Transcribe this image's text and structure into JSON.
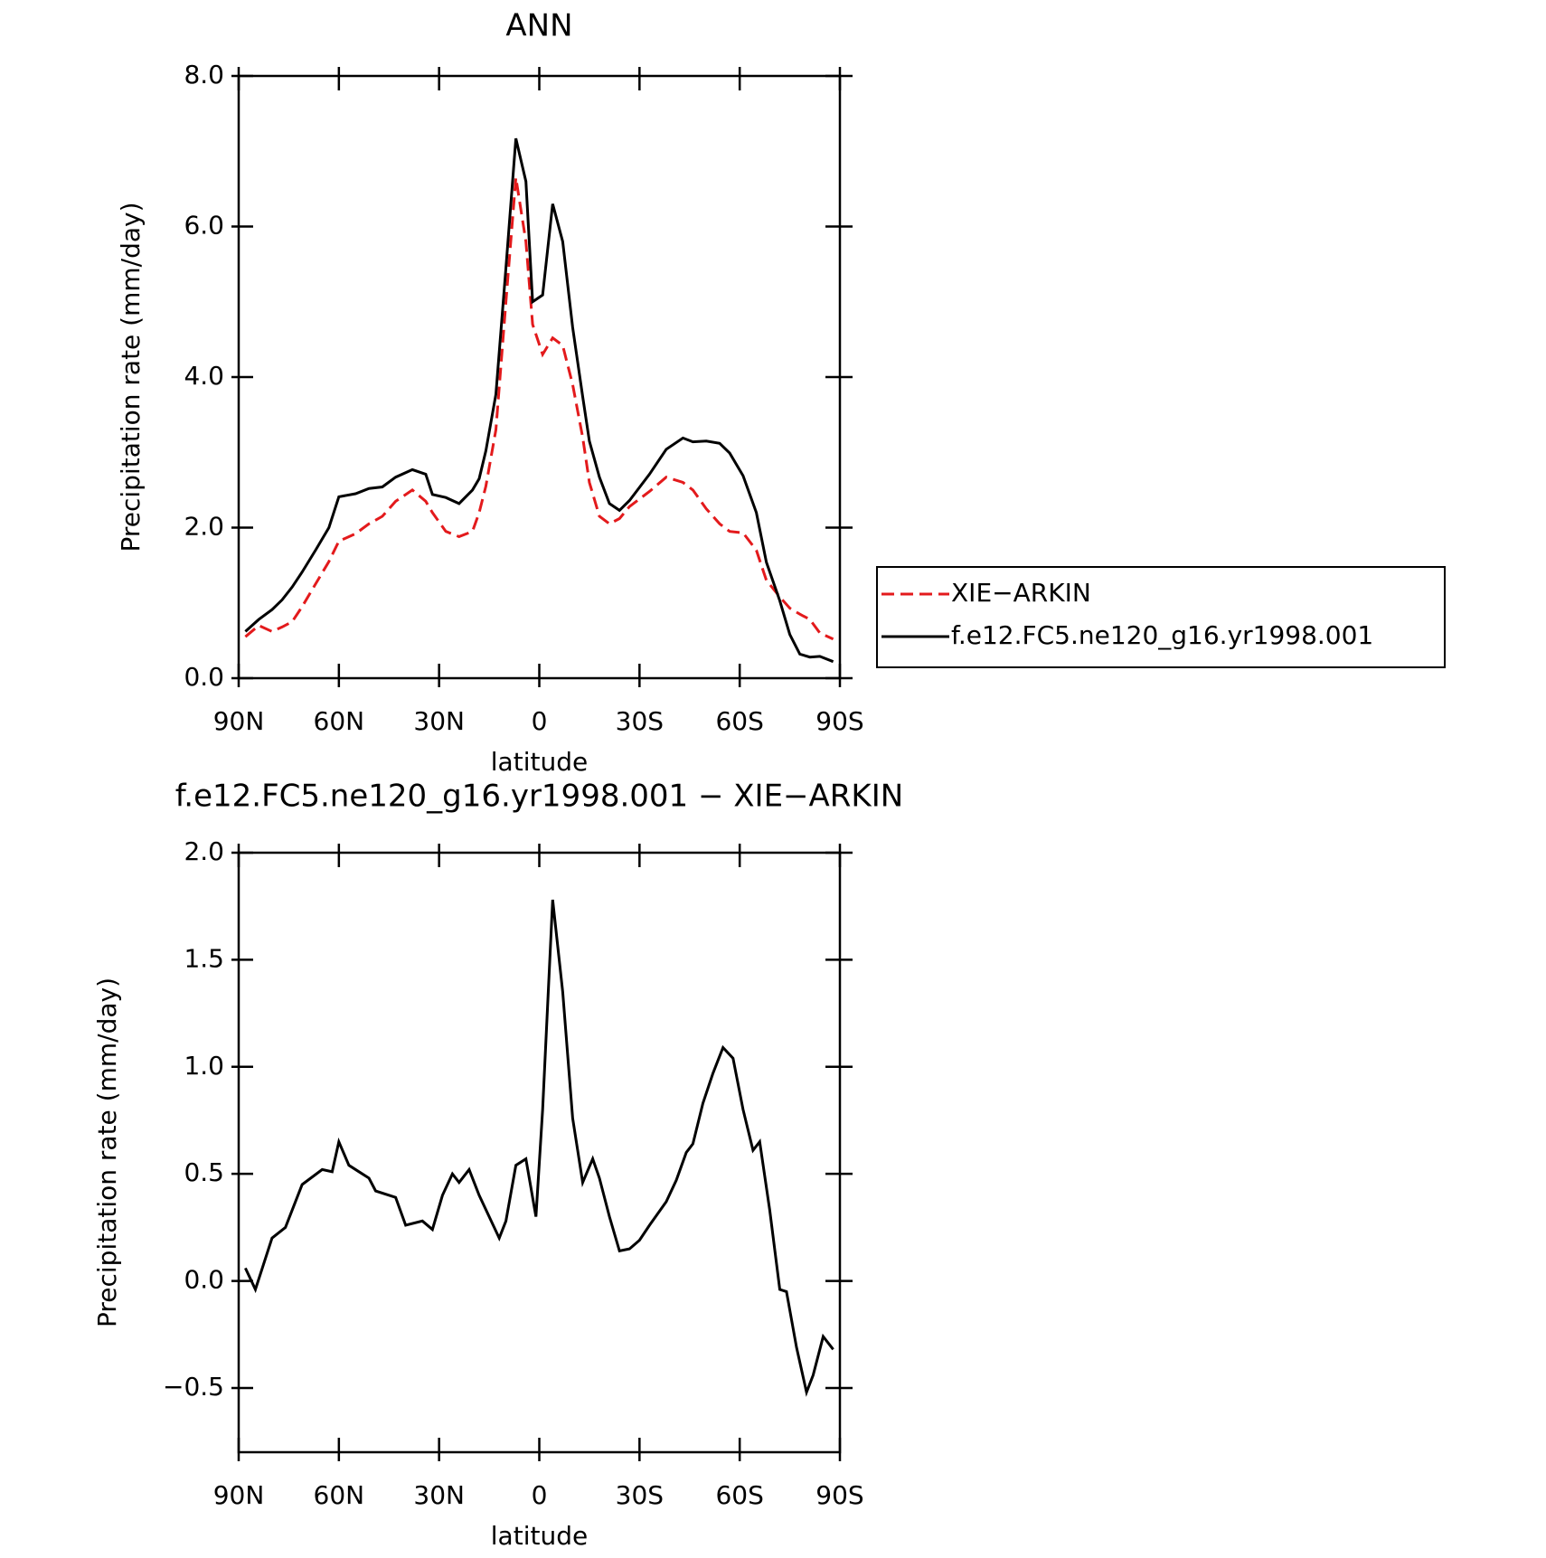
{
  "chart_data": [
    {
      "type": "line",
      "title": "ANN",
      "x_label": "latitude",
      "y_label": "Precipitation rate (mm/day)",
      "x": [
        88,
        84,
        80,
        77,
        74,
        71,
        67,
        63,
        60,
        55,
        51,
        47,
        43,
        38,
        34,
        32,
        28,
        24,
        20,
        18,
        16,
        13,
        10,
        7,
        4,
        2,
        -1,
        -4,
        -7,
        -10,
        -13,
        -15,
        -18,
        -21,
        -24,
        -27,
        -33,
        -38,
        -43,
        -46,
        -50,
        -54,
        -57,
        -61,
        -65,
        -68,
        -72,
        -75,
        -78,
        -81,
        -84,
        -88
      ],
      "series": [
        {
          "name": "XIE−ARKIN",
          "color": "#e31a1c",
          "linestyle": "dashed",
          "values": [
            0.55,
            0.7,
            0.62,
            0.68,
            0.75,
            0.95,
            1.25,
            1.55,
            1.82,
            1.92,
            2.05,
            2.15,
            2.35,
            2.5,
            2.35,
            2.2,
            1.95,
            1.88,
            1.95,
            2.2,
            2.55,
            3.3,
            5.0,
            6.65,
            5.8,
            4.7,
            4.3,
            4.52,
            4.42,
            3.9,
            3.2,
            2.6,
            2.15,
            2.05,
            2.12,
            2.28,
            2.48,
            2.67,
            2.6,
            2.5,
            2.25,
            2.05,
            1.95,
            1.93,
            1.7,
            1.3,
            1.08,
            0.93,
            0.85,
            0.78,
            0.6,
            0.52
          ]
        },
        {
          "name": "f.e12.FC5.ne120_g16.yr1998.001",
          "color": "#000000",
          "linestyle": "solid",
          "values": [
            0.62,
            0.78,
            0.91,
            1.04,
            1.21,
            1.41,
            1.7,
            2.0,
            2.41,
            2.45,
            2.52,
            2.54,
            2.67,
            2.77,
            2.71,
            2.44,
            2.4,
            2.32,
            2.5,
            2.65,
            3.02,
            3.77,
            5.45,
            7.17,
            6.6,
            5.0,
            5.09,
            6.3,
            5.8,
            4.66,
            3.74,
            3.15,
            2.67,
            2.32,
            2.23,
            2.36,
            2.71,
            3.04,
            3.19,
            3.14,
            3.15,
            3.12,
            2.99,
            2.69,
            2.2,
            1.54,
            1.03,
            0.58,
            0.32,
            0.28,
            0.29,
            0.22
          ]
        }
      ],
      "xlim": [
        90,
        -90
      ],
      "xticks": [
        {
          "value": 90,
          "label": "90N"
        },
        {
          "value": 60,
          "label": "60N"
        },
        {
          "value": 30,
          "label": "30N"
        },
        0,
        {
          "value": -30,
          "label": "30S"
        },
        {
          "value": -60,
          "label": "60S"
        },
        {
          "value": -90,
          "label": "90S"
        }
      ],
      "ylim": [
        0,
        8
      ],
      "yticks": [
        {
          "value": 0,
          "label": "0.0"
        },
        {
          "value": 2,
          "label": "2.0"
        },
        {
          "value": 4,
          "label": "4.0"
        },
        {
          "value": 6,
          "label": "6.0"
        },
        {
          "value": 8,
          "label": "8.0"
        }
      ],
      "legend": "right"
    },
    {
      "type": "line",
      "title": "f.e12.FC5.ne120_g16.yr1998.001 − XIE−ARKIN",
      "x_label": "latitude",
      "y_label": "Precipitation rate (mm/day)",
      "x": [
        88,
        85,
        80,
        76,
        74,
        71,
        65,
        62,
        60,
        57,
        54,
        51,
        49,
        43,
        40,
        35,
        32,
        29,
        26,
        24,
        21,
        18,
        12,
        10,
        7,
        4,
        1,
        -1,
        -4,
        -7,
        -10,
        -13,
        -16,
        -18,
        -21,
        -24,
        -27,
        -30,
        -33,
        -38,
        -41,
        -44,
        -46,
        -49,
        -52,
        -55,
        -58,
        -61,
        -64,
        -66,
        -69,
        -72,
        -74,
        -77,
        -80,
        -82,
        -85,
        -88
      ],
      "series": [
        {
          "color": "#000000",
          "linestyle": "solid",
          "values": [
            0.06,
            -0.04,
            0.2,
            0.25,
            0.33,
            0.45,
            0.52,
            0.51,
            0.65,
            0.54,
            0.51,
            0.48,
            0.42,
            0.39,
            0.26,
            0.28,
            0.24,
            0.4,
            0.5,
            0.46,
            0.52,
            0.4,
            0.2,
            0.28,
            0.54,
            0.57,
            0.3,
            0.8,
            1.78,
            1.35,
            0.76,
            0.46,
            0.57,
            0.48,
            0.3,
            0.14,
            0.15,
            0.19,
            0.26,
            0.37,
            0.47,
            0.6,
            0.64,
            0.83,
            0.97,
            1.09,
            1.04,
            0.8,
            0.61,
            0.65,
            0.33,
            -0.04,
            -0.05,
            -0.31,
            -0.52,
            -0.44,
            -0.26,
            -0.32
          ]
        }
      ],
      "xlim": [
        90,
        -90
      ],
      "xticks": [
        {
          "value": 90,
          "label": "90N"
        },
        {
          "value": 60,
          "label": "60N"
        },
        {
          "value": 30,
          "label": "30N"
        },
        0,
        {
          "value": -30,
          "label": "30S"
        },
        {
          "value": -60,
          "label": "60S"
        },
        {
          "value": -90,
          "label": "90S"
        }
      ],
      "ylim": [
        -0.8,
        2.0
      ],
      "yticks": [
        {
          "value": -0.5,
          "label": "−0.5"
        },
        {
          "value": 0,
          "label": "0.0"
        },
        {
          "value": 0.5,
          "label": "0.5"
        },
        {
          "value": 1,
          "label": "1.0"
        },
        {
          "value": 1.5,
          "label": "1.5"
        },
        {
          "value": 2,
          "label": "2.0"
        }
      ]
    }
  ]
}
